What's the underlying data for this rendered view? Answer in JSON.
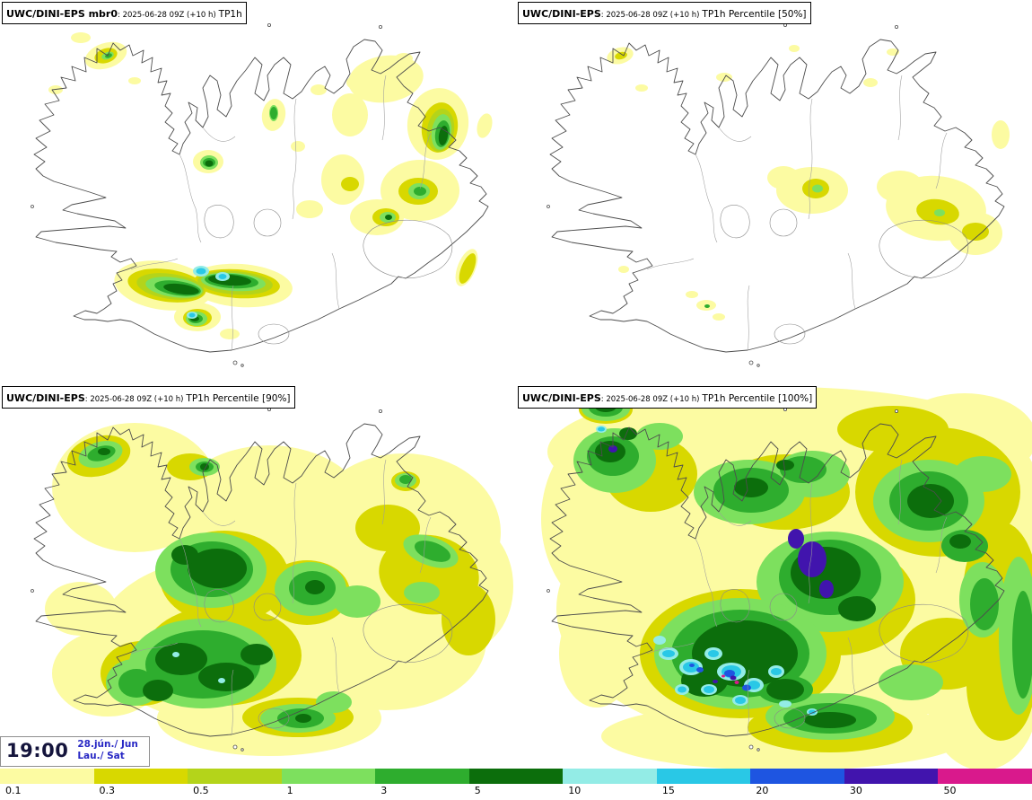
{
  "panels": [
    {
      "id": "member-mbr0",
      "title_bold": "UWC/DINI-EPS mbr0",
      "title_mid": ": 2025-06-28 09Z (+10 h)",
      "title_suffix": "TP1h"
    },
    {
      "id": "percentile-50",
      "title_bold": "UWC/DINI-EPS",
      "title_mid": ": 2025-06-28 09Z (+10 h)",
      "title_suffix": "TP1h Percentile [50%]"
    },
    {
      "id": "percentile-90",
      "title_bold": "UWC/DINI-EPS",
      "title_mid": ": 2025-06-28 09Z (+10 h)",
      "title_suffix": "TP1h Percentile [90%]"
    },
    {
      "id": "percentile-100",
      "title_bold": "UWC/DINI-EPS",
      "title_mid": ": 2025-06-28 09Z (+10 h)",
      "title_suffix": "TP1h Percentile [100%]"
    }
  ],
  "clock": {
    "time": "19:00",
    "date": "28.jún./ Jun",
    "weekday": "Lau./ Sat"
  },
  "legend": {
    "segments": [
      {
        "label": "0.1",
        "color": "#fcfba2"
      },
      {
        "label": "0.3",
        "color": "#d8d800"
      },
      {
        "label": "0.5",
        "color": "#b4d41a"
      },
      {
        "label": "1",
        "color": "#7de05e"
      },
      {
        "label": "3",
        "color": "#2ead2e"
      },
      {
        "label": "5",
        "color": "#0c6e0c"
      },
      {
        "label": "10",
        "color": "#93ece6"
      },
      {
        "label": "15",
        "color": "#29c8e6"
      },
      {
        "label": "20",
        "color": "#1e55e1"
      },
      {
        "label": "30",
        "color": "#4114ad"
      },
      {
        "label": "50",
        "color": "#d9198c"
      }
    ]
  }
}
